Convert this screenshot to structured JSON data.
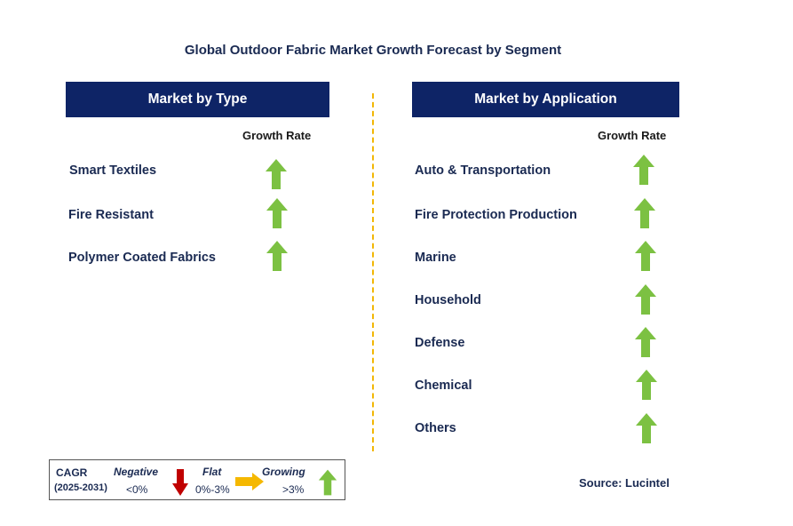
{
  "title": "Global Outdoor Fabric Market Growth Forecast by Segment",
  "type_panel": {
    "header": "Market by Type",
    "growth_label": "Growth Rate",
    "items": [
      {
        "label": "Smart Textiles",
        "trend": "growing"
      },
      {
        "label": "Fire Resistant",
        "trend": "growing"
      },
      {
        "label": "Polymer Coated Fabrics",
        "trend": "growing"
      }
    ]
  },
  "application_panel": {
    "header": "Market by Application",
    "growth_label": "Growth Rate",
    "items": [
      {
        "label": "Auto & Transportation",
        "trend": "growing"
      },
      {
        "label": "Fire Protection Production",
        "trend": "growing"
      },
      {
        "label": "Marine",
        "trend": "growing"
      },
      {
        "label": "Household",
        "trend": "growing"
      },
      {
        "label": "Defense",
        "trend": "growing"
      },
      {
        "label": "Chemical",
        "trend": "growing"
      },
      {
        "label": "Others",
        "trend": "growing"
      }
    ]
  },
  "legend": {
    "cagr_label": "CAGR",
    "period": "(2025-2031)",
    "negative": {
      "label": "Negative",
      "range": "<0%",
      "icon": "red-down-arrow-icon"
    },
    "flat": {
      "label": "Flat",
      "range": "0%-3%",
      "icon": "orange-right-arrow-icon"
    },
    "growing": {
      "label": "Growing",
      "range": ">3%",
      "icon": "green-up-arrow-icon"
    }
  },
  "source": "Source: Lucintel",
  "colors": {
    "header_bg": "#0e2466",
    "growing": "#7cc142",
    "negative": "#c00000",
    "flat": "#f5b800",
    "divider": "#f2b705"
  }
}
